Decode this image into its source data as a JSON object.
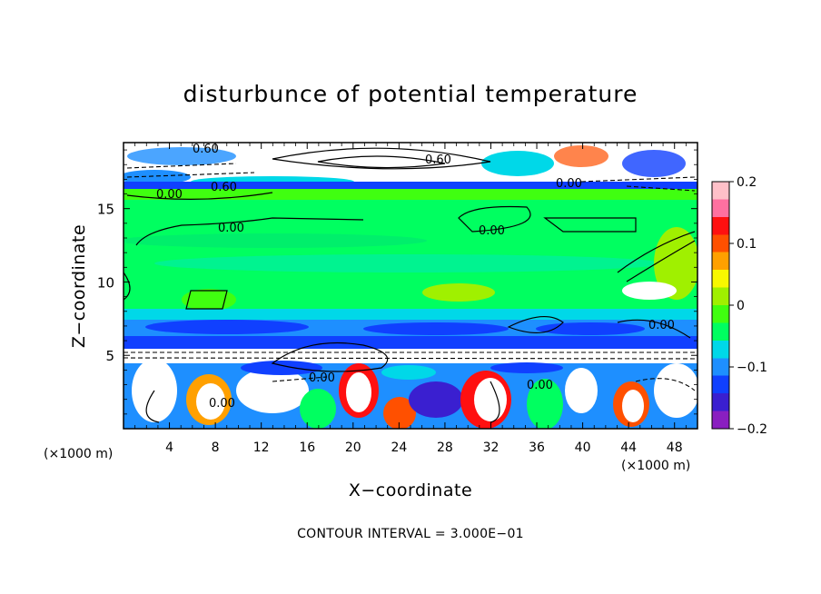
{
  "chart_data": {
    "type": "heatmap",
    "title": "disturbunce of potential temperature",
    "xlabel": "X−coordinate",
    "ylabel": "Z−coordinate",
    "x_unit_left": "(×1000 m)",
    "x_unit_right": "(×1000 m)",
    "x_ticks": [
      "4",
      "8",
      "12",
      "16",
      "20",
      "24",
      "28",
      "32",
      "36",
      "40",
      "44",
      "48"
    ],
    "y_ticks": [
      "5",
      "10",
      "15"
    ],
    "xlim": [
      0,
      50
    ],
    "ylim": [
      0,
      19.5
    ],
    "colorbar": {
      "ticks": [
        "0.2",
        "0.1",
        "0",
        "−0.1",
        "−0.2"
      ],
      "range": [
        -0.2,
        0.2
      ],
      "colors": [
        "#8a1fc0",
        "#3a1fd0",
        "#1040ff",
        "#1e8fff",
        "#00d8e8",
        "#00ff60",
        "#40ff10",
        "#a0f000",
        "#f8f800",
        "#ffa000",
        "#ff5000",
        "#ff1010",
        "#ff70a0",
        "#ffc0c8"
      ]
    },
    "contour_labels": [
      "0.60",
      "0.60",
      "0.00",
      "0.60",
      "0.00",
      "0.00",
      "0.00",
      "0.00",
      "0.00",
      "0.00",
      "0.00"
    ],
    "contour_interval_text": "CONTOUR INTERVAL = 3.000E−01"
  }
}
